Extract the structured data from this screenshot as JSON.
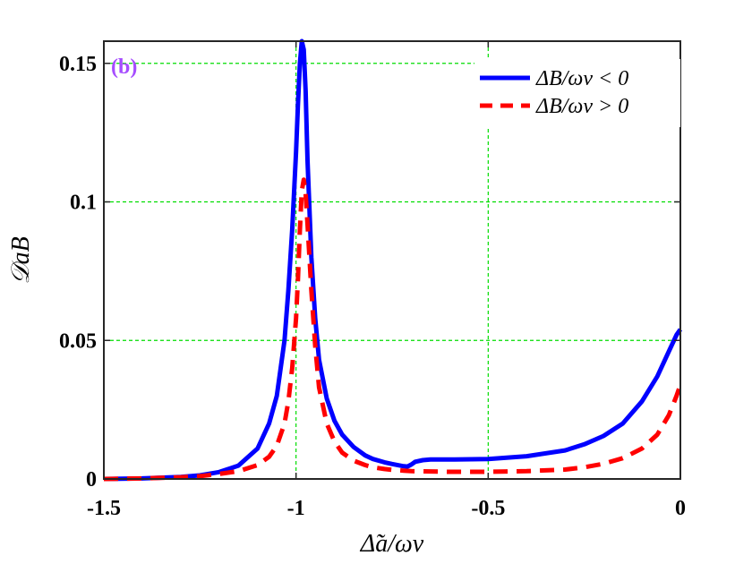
{
  "chart_data": {
    "type": "line",
    "panel_label": "(b)",
    "xlabel": "Δ̃a/ων",
    "ylabel": "𝒟aB",
    "xlim": [
      -1.5,
      0
    ],
    "ylim": [
      0,
      0.158
    ],
    "xticks": [
      -1.5,
      -1,
      -0.5,
      0
    ],
    "xtick_labels": [
      "-1.5",
      "-1",
      "-0.5",
      "0"
    ],
    "yticks": [
      0,
      0.05,
      0.1,
      0.15
    ],
    "ytick_labels": [
      "0",
      "0.05",
      "0.1",
      "0.15"
    ],
    "grid": "dashed, green",
    "legend_position": "top-right",
    "colors": {
      "series1": "#0000ff",
      "series2": "#ff0000",
      "grid": "#00dd00",
      "panel_label": "#a64dff"
    },
    "series": [
      {
        "name": "ΔB/ων < 0",
        "style": "solid",
        "x": [
          -1.5,
          -1.4,
          -1.3,
          -1.25,
          -1.2,
          -1.15,
          -1.1,
          -1.07,
          -1.05,
          -1.03,
          -1.02,
          -1.01,
          -1.0,
          -0.995,
          -0.99,
          -0.985,
          -0.98,
          -0.975,
          -0.97,
          -0.96,
          -0.95,
          -0.94,
          -0.92,
          -0.9,
          -0.88,
          -0.85,
          -0.82,
          -0.8,
          -0.77,
          -0.75,
          -0.72,
          -0.71,
          -0.7,
          -0.69,
          -0.67,
          -0.65,
          -0.6,
          -0.5,
          -0.4,
          -0.3,
          -0.25,
          -0.2,
          -0.15,
          -0.1,
          -0.06,
          -0.03,
          -0.01,
          0
        ],
        "y": [
          0.0,
          0.0002,
          0.0007,
          0.0013,
          0.0025,
          0.0048,
          0.011,
          0.02,
          0.03,
          0.05,
          0.068,
          0.09,
          0.118,
          0.135,
          0.15,
          0.158,
          0.155,
          0.14,
          0.115,
          0.08,
          0.058,
          0.043,
          0.029,
          0.021,
          0.016,
          0.0115,
          0.0085,
          0.0072,
          0.006,
          0.0054,
          0.0046,
          0.0045,
          0.0052,
          0.0062,
          0.0068,
          0.007,
          0.007,
          0.0072,
          0.0082,
          0.0103,
          0.0125,
          0.0155,
          0.02,
          0.028,
          0.037,
          0.046,
          0.052,
          0.054
        ]
      },
      {
        "name": "ΔB/ων > 0",
        "style": "dashed",
        "x": [
          -1.5,
          -1.4,
          -1.3,
          -1.25,
          -1.2,
          -1.15,
          -1.1,
          -1.07,
          -1.05,
          -1.03,
          -1.02,
          -1.01,
          -1.0,
          -0.995,
          -0.99,
          -0.985,
          -0.98,
          -0.975,
          -0.97,
          -0.96,
          -0.95,
          -0.94,
          -0.92,
          -0.9,
          -0.88,
          -0.85,
          -0.82,
          -0.8,
          -0.77,
          -0.75,
          -0.72,
          -0.7,
          -0.65,
          -0.6,
          -0.5,
          -0.4,
          -0.3,
          -0.25,
          -0.2,
          -0.15,
          -0.1,
          -0.06,
          -0.03,
          -0.01,
          0
        ],
        "y": [
          0.0,
          0.0002,
          0.0006,
          0.001,
          0.0018,
          0.0028,
          0.005,
          0.008,
          0.012,
          0.02,
          0.028,
          0.04,
          0.058,
          0.072,
          0.09,
          0.104,
          0.108,
          0.103,
          0.092,
          0.068,
          0.048,
          0.033,
          0.02,
          0.0135,
          0.0095,
          0.0066,
          0.005,
          0.0042,
          0.0036,
          0.0033,
          0.003,
          0.0028,
          0.0027,
          0.0026,
          0.0026,
          0.0028,
          0.0034,
          0.0042,
          0.0055,
          0.0075,
          0.011,
          0.016,
          0.023,
          0.03,
          0.034
        ]
      }
    ]
  }
}
